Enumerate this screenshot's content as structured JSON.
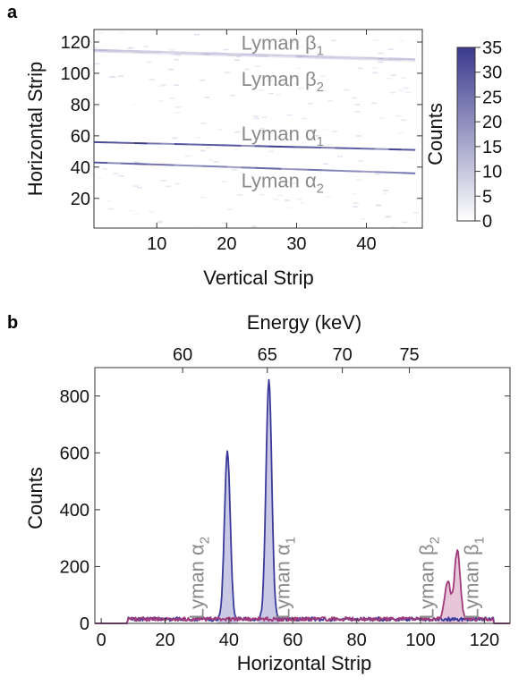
{
  "panel_a_label": "a",
  "panel_b_label": "b",
  "chart_data": [
    {
      "type": "heatmap",
      "panel": "a",
      "xlabel": "Vertical Strip",
      "ylabel": "Horizontal Strip",
      "xlim": [
        1,
        48
      ],
      "ylim": [
        1,
        128
      ],
      "xticks": [
        10,
        20,
        30,
        40
      ],
      "yticks": [
        20,
        40,
        60,
        80,
        100,
        120
      ],
      "colorbar": {
        "label": "Counts",
        "min": 0,
        "max": 35,
        "ticks": [
          0,
          5,
          10,
          15,
          20,
          25,
          30,
          35
        ],
        "low_color": "#ffffff",
        "high_color": "#3a3a8e"
      },
      "lines": [
        {
          "label": "Lyman β",
          "sub": "1",
          "x": [
            1,
            47
          ],
          "y": [
            115,
            109
          ],
          "intensity": 0.35
        },
        {
          "label": "Lyman β",
          "sub": "2",
          "x": [
            1,
            47
          ],
          "y": [
            114,
            108
          ],
          "intensity": 0.2
        },
        {
          "label": "Lyman α",
          "sub": "1",
          "x": [
            1,
            47
          ],
          "y": [
            56,
            51
          ],
          "intensity": 1.0
        },
        {
          "label": "Lyman α",
          "sub": "2",
          "x": [
            1,
            47
          ],
          "y": [
            43,
            36
          ],
          "intensity": 0.85
        }
      ],
      "annotations": [
        {
          "text": "Lyman β",
          "sub": "1",
          "x": 28,
          "y": 119
        },
        {
          "text": "Lyman β",
          "sub": "2",
          "x": 28,
          "y": 96
        },
        {
          "text": "Lyman α",
          "sub": "1",
          "x": 28,
          "y": 61
        },
        {
          "text": "Lyman α",
          "sub": "2",
          "x": 28,
          "y": 31
        }
      ]
    },
    {
      "type": "line",
      "panel": "b",
      "xlabel": "Horizontal Strip",
      "ylabel": "Counts",
      "top_xlabel": "Energy (keV)",
      "xlim": [
        -2,
        128
      ],
      "ylim": [
        0,
        900
      ],
      "xticks": [
        0,
        20,
        40,
        60,
        80,
        100,
        120
      ],
      "yticks": [
        0,
        200,
        400,
        600,
        800
      ],
      "top_ticks": [
        {
          "label": "60",
          "strip": 25.5
        },
        {
          "label": "65",
          "strip": 52
        },
        {
          "label": "70",
          "strip": 75.5
        },
        {
          "label": "75",
          "strip": 96.5
        }
      ],
      "background": {
        "x_start": 8,
        "x_end": 123,
        "level": 15
      },
      "series": [
        {
          "color": "#3a3a9a",
          "fill": "#c9c9e6",
          "peaks": [
            {
              "center": 39.5,
              "height": 590,
              "width": 0.9
            },
            {
              "center": 52.5,
              "height": 845,
              "width": 0.9
            }
          ]
        },
        {
          "color": "#a03a7a",
          "fill": "#e8c6da",
          "peaks": [
            {
              "center": 108.5,
              "height": 135,
              "width": 0.9
            },
            {
              "center": 111.5,
              "height": 240,
              "width": 0.9
            }
          ]
        }
      ],
      "annotations": [
        {
          "text": "Lyman α",
          "sub": "2",
          "x": 32
        },
        {
          "text": "Lyman α",
          "sub": "1",
          "x": 59
        },
        {
          "text": "Lyman β",
          "sub": "2",
          "x": 104
        },
        {
          "text": "Lyman β",
          "sub": "1",
          "x": 118
        }
      ]
    }
  ]
}
